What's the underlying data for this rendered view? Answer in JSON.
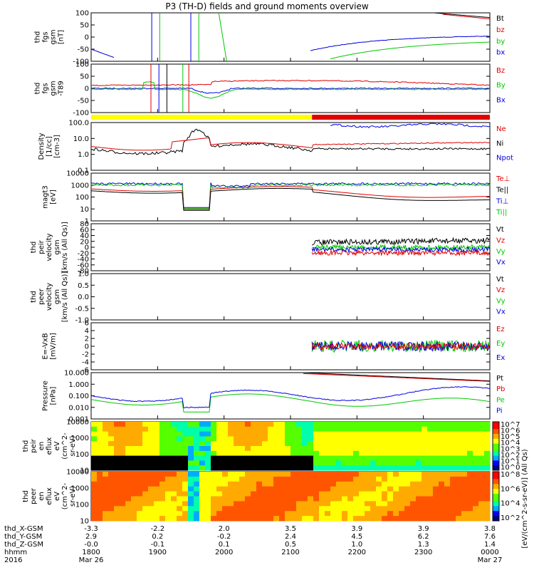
{
  "title": "P3 (TH-D) fields and ground moments overview",
  "colors": {
    "black": "#000000",
    "red": "#e00000",
    "green": "#00c800",
    "blue": "#0000e0",
    "yellow": "#ffff00"
  },
  "chart_data": {
    "type": "line",
    "time_axis": {
      "label": "hhmm",
      "ticks": [
        "1800",
        "1900",
        "2000",
        "2100",
        "2200",
        "2300",
        "0000"
      ],
      "date_labels": [
        "Mar 26",
        "",
        "",
        "",
        "",
        "",
        "Mar 27"
      ],
      "year": "2016"
    },
    "orbit_rows": [
      {
        "label": "thd_X-GSM",
        "values": [
          "-3.3",
          "-2.2",
          "2.0",
          "3.5",
          "3.9",
          "3.9",
          "3.8"
        ]
      },
      {
        "label": "thd_Y-GSM",
        "values": [
          "2.9",
          "0.2",
          "-0.2",
          "2.4",
          "4.5",
          "6.2",
          "7.6"
        ]
      },
      {
        "label": "thd_Z-GSM",
        "values": [
          "-0.0",
          "-0.1",
          "0.1",
          "0.5",
          "1.0",
          "1.3",
          "1.4"
        ]
      }
    ],
    "panels": [
      {
        "id": "fgs",
        "ylabel": [
          "thd",
          "fgs",
          "gsm",
          "[nT]"
        ],
        "yticks": [
          "100",
          "50",
          "0",
          "-50",
          "-100"
        ],
        "legend": [
          {
            "name": "Bt",
            "color": "black"
          },
          {
            "name": "bz",
            "color": "red"
          },
          {
            "name": "by",
            "color": "green"
          },
          {
            "name": "bx",
            "color": "blue"
          }
        ]
      },
      {
        "id": "fgs_dip",
        "ylabel": [
          "thd",
          "fgs",
          "gsm",
          "-T89"
        ],
        "yticks": [
          "100",
          "50",
          "0",
          "-50",
          "-100"
        ],
        "legend": [
          {
            "name": "Bz",
            "color": "red"
          },
          {
            "name": "By",
            "color": "green"
          },
          {
            "name": "Bx",
            "color": "blue"
          }
        ]
      },
      {
        "id": "density",
        "ylabel": [
          "Density",
          "[1/cc]",
          "[cm-3]"
        ],
        "yticks": [
          "100.0",
          "10.0",
          "1.0",
          "0.1"
        ],
        "legend": [
          {
            "name": "Ne",
            "color": "red"
          },
          {
            "name": "Ni",
            "color": "black"
          },
          {
            "name": "Npot",
            "color": "blue"
          }
        ]
      },
      {
        "id": "temp",
        "ylabel": [
          "magt3",
          "[eV]"
        ],
        "yticks": [
          "10000",
          "1000",
          "100",
          "10",
          "1"
        ],
        "legend": [
          {
            "name": "Te⊥",
            "color": "red"
          },
          {
            "name": "Te||",
            "color": "black"
          },
          {
            "name": "Ti⊥",
            "color": "blue"
          },
          {
            "name": "Ti||",
            "color": "green"
          }
        ]
      },
      {
        "id": "vi",
        "ylabel": [
          "thd",
          "peir",
          "velocity",
          "gsm",
          "[km/s (All Qs)]"
        ],
        "yticks": [
          "80",
          "60",
          "40",
          "20",
          "0",
          "-20",
          "-40",
          "-60",
          "-80"
        ],
        "legend": [
          {
            "name": "Vt",
            "color": "black"
          },
          {
            "name": "Vz",
            "color": "red"
          },
          {
            "name": "Vy",
            "color": "green"
          },
          {
            "name": "Vx",
            "color": "blue"
          }
        ]
      },
      {
        "id": "ve",
        "ylabel": [
          "thd",
          "peer",
          "velocity",
          "gsm",
          "[km/s (All Qs)]"
        ],
        "yticks": [
          "1.0",
          "0.5",
          "0.0",
          "-0.5",
          "-1.0"
        ],
        "legend": [
          {
            "name": "Vt",
            "color": "black"
          },
          {
            "name": "Vz",
            "color": "red"
          },
          {
            "name": "Vy",
            "color": "green"
          },
          {
            "name": "Vx",
            "color": "blue"
          }
        ]
      },
      {
        "id": "efield",
        "ylabel": [
          "E=-VxB",
          "[mV/m]"
        ],
        "yticks": [
          "6",
          "4",
          "2",
          "0",
          "-2",
          "-4",
          "-6"
        ],
        "legend": [
          {
            "name": "Ez",
            "color": "red"
          },
          {
            "name": "Ey",
            "color": "green"
          },
          {
            "name": "Ex",
            "color": "blue"
          }
        ]
      },
      {
        "id": "pressure",
        "ylabel": [
          "Pressure",
          "[nPa]"
        ],
        "yticks": [
          "10.000",
          "1.000",
          "0.100",
          "0.010",
          "0.001"
        ],
        "legend": [
          {
            "name": "Pt",
            "color": "black"
          },
          {
            "name": "Pb",
            "color": "red"
          },
          {
            "name": "Pe",
            "color": "green"
          },
          {
            "name": "Pi",
            "color": "blue"
          }
        ]
      },
      {
        "id": "ion_spec",
        "ylabel": [
          "thd",
          "peir",
          "en",
          "eflux",
          "eV",
          "(cm^2-",
          "sr-eV)"
        ],
        "yticks": [
          "10000",
          "1000",
          "100",
          "10"
        ],
        "colorbar": {
          "label": "[eV/(cm^2-s-sr-eV)] (All Qs)",
          "ticks": [
            "10^7",
            "10^6",
            "10^5",
            "10^4",
            "10^3",
            "10^2",
            "10^1",
            "10^0"
          ]
        }
      },
      {
        "id": "ele_spec",
        "ylabel": [
          "thd",
          "peer",
          "en",
          "eflux",
          "eV",
          "(cm^2-",
          "sr-eV)"
        ],
        "yticks": [
          "10000",
          "1000",
          "100",
          "10"
        ],
        "colorbar": {
          "label": "[eV/(cm^2-s-sr-eV)]",
          "ticks": [
            "10^8",
            "10^6",
            "10^4",
            "10^2"
          ]
        }
      }
    ],
    "mode_bar": {
      "segments": [
        {
          "color": "yellow",
          "from": "1800",
          "to": "2140"
        },
        {
          "color": "red",
          "from": "2140",
          "to": "0000"
        }
      ]
    }
  }
}
